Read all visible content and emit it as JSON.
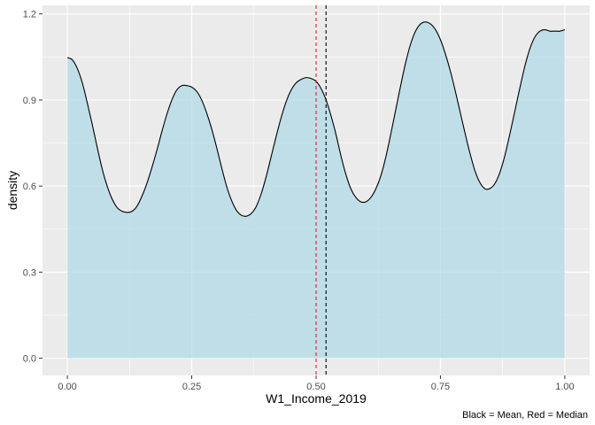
{
  "chart_data": {
    "type": "area",
    "title": "",
    "xlabel": "W1_Income_2019",
    "ylabel": "density",
    "caption": "Black = Mean, Red = Median",
    "xlim": [
      -0.05,
      1.05
    ],
    "ylim": [
      -0.06,
      1.23
    ],
    "x_ticks": [
      0.0,
      0.25,
      0.5,
      0.75,
      1.0
    ],
    "x_tick_labels": [
      "0.00",
      "0.25",
      "0.50",
      "0.75",
      "1.00"
    ],
    "y_ticks": [
      0.0,
      0.3,
      0.6,
      0.9,
      1.2
    ],
    "y_tick_labels": [
      "0.0",
      "0.3",
      "0.6",
      "0.9",
      "1.2"
    ],
    "grid": true,
    "series": [
      {
        "values_x": [
          0.0,
          0.01,
          0.02,
          0.03,
          0.04,
          0.05,
          0.06,
          0.07,
          0.08,
          0.09,
          0.1,
          0.11,
          0.12,
          0.13,
          0.14,
          0.15,
          0.16,
          0.17,
          0.18,
          0.19,
          0.2,
          0.21,
          0.22,
          0.23,
          0.24,
          0.25,
          0.26,
          0.27,
          0.28,
          0.29,
          0.3,
          0.31,
          0.32,
          0.33,
          0.34,
          0.35,
          0.36,
          0.37,
          0.38,
          0.39,
          0.4,
          0.41,
          0.42,
          0.43,
          0.44,
          0.45,
          0.46,
          0.47,
          0.48,
          0.49,
          0.5,
          0.51,
          0.52,
          0.53,
          0.54,
          0.55,
          0.56,
          0.57,
          0.58,
          0.59,
          0.6,
          0.61,
          0.62,
          0.63,
          0.64,
          0.65,
          0.66,
          0.67,
          0.68,
          0.69,
          0.7,
          0.71,
          0.72,
          0.73,
          0.74,
          0.75,
          0.76,
          0.77,
          0.78,
          0.79,
          0.8,
          0.81,
          0.82,
          0.83,
          0.84,
          0.85,
          0.86,
          0.87,
          0.88,
          0.89,
          0.9,
          0.91,
          0.92,
          0.93,
          0.94,
          0.95,
          0.96,
          0.97,
          0.98,
          0.99,
          1.0
        ],
        "values_y": [
          1.048,
          1.04,
          1.01,
          0.96,
          0.89,
          0.815,
          0.735,
          0.66,
          0.6,
          0.555,
          0.525,
          0.512,
          0.508,
          0.512,
          0.53,
          0.565,
          0.61,
          0.665,
          0.725,
          0.79,
          0.85,
          0.9,
          0.935,
          0.95,
          0.95,
          0.945,
          0.93,
          0.9,
          0.855,
          0.8,
          0.735,
          0.665,
          0.6,
          0.55,
          0.515,
          0.498,
          0.495,
          0.505,
          0.53,
          0.575,
          0.635,
          0.705,
          0.775,
          0.84,
          0.895,
          0.935,
          0.96,
          0.972,
          0.978,
          0.975,
          0.965,
          0.94,
          0.9,
          0.845,
          0.78,
          0.705,
          0.64,
          0.59,
          0.56,
          0.545,
          0.545,
          0.56,
          0.59,
          0.635,
          0.7,
          0.78,
          0.865,
          0.95,
          1.03,
          1.095,
          1.14,
          1.165,
          1.172,
          1.165,
          1.145,
          1.11,
          1.06,
          1.0,
          0.93,
          0.855,
          0.78,
          0.71,
          0.65,
          0.61,
          0.59,
          0.592,
          0.61,
          0.65,
          0.71,
          0.785,
          0.865,
          0.945,
          1.02,
          1.08,
          1.12,
          1.14,
          1.145,
          1.14,
          1.14,
          1.14,
          1.145
        ]
      }
    ],
    "vlines": [
      {
        "label": "Mean",
        "x": 0.52,
        "color": "#000000"
      },
      {
        "label": "Median",
        "x": 0.5,
        "color": "#e41a1c"
      }
    ],
    "colors": {
      "panel_bg": "#ebebeb",
      "grid_major": "#ffffff",
      "fill": "#add8e6",
      "line": "#000000"
    }
  }
}
